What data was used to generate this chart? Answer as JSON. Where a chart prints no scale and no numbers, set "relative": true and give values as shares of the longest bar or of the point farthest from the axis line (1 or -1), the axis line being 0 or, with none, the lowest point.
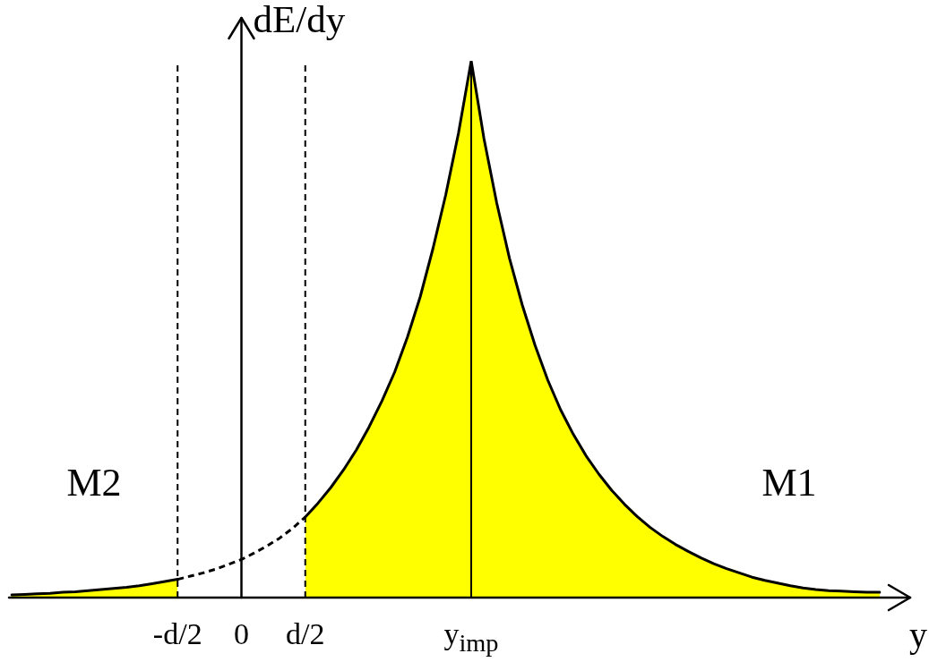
{
  "chart_data": {
    "type": "area",
    "relative": true,
    "xlabel": "y",
    "ylabel": "dE/dy",
    "categories": [
      null,
      null,
      null,
      null,
      null,
      null,
      null,
      null,
      null,
      null,
      null,
      null,
      null,
      "-d/2",
      null,
      null,
      null,
      null,
      "0",
      null,
      null,
      null,
      null,
      "d/2",
      null,
      null,
      null,
      null,
      null,
      null,
      null,
      null,
      null,
      null,
      null,
      null,
      "y$_{imp}$",
      null,
      null,
      null,
      null,
      null,
      null,
      null,
      null,
      null,
      null,
      null,
      null,
      null,
      null,
      null,
      null,
      null,
      null,
      null,
      null,
      null,
      null,
      null,
      null,
      null,
      null,
      null,
      null,
      null,
      null,
      null,
      null
    ],
    "series": [
      {
        "color": "#ffff00",
        "values": [
          0.005,
          0.006,
          0.007,
          0.008,
          0.01,
          0.011,
          0.013,
          0.015,
          0.017,
          0.019,
          0.022,
          0.026,
          0.03,
          0.034,
          null,
          null,
          null,
          null,
          null,
          null,
          null,
          null,
          null,
          0.15,
          0.176,
          0.205,
          0.238,
          0.275,
          0.318,
          0.366,
          0.42,
          0.485,
          0.56,
          0.65,
          0.75,
          0.865,
          1,
          0.855,
          0.735,
          0.632,
          0.545,
          0.47,
          0.405,
          0.35,
          0.304,
          0.264,
          0.23,
          0.2,
          0.174,
          0.151,
          0.131,
          0.114,
          0.099,
          0.086,
          0.074,
          0.063,
          0.054,
          0.046,
          0.038,
          0.032,
          0.027,
          0.022,
          0.018,
          0.015,
          0.013,
          0.012,
          0.011,
          0.01,
          0.01
        ]
      },
      {
        "type": "line",
        "color": "#000000",
        "line_style": "dashed",
        "values": [
          null,
          null,
          null,
          null,
          null,
          null,
          null,
          null,
          null,
          null,
          null,
          null,
          null,
          0.034,
          0.04,
          0.046,
          0.053,
          0.062,
          0.071,
          0.083,
          0.096,
          0.111,
          0.129,
          0.15,
          null,
          null,
          null,
          null,
          null,
          null,
          null,
          null,
          null,
          null,
          null,
          null,
          null,
          null,
          null,
          null,
          null,
          null,
          null,
          null,
          null,
          null,
          null,
          null,
          null,
          null,
          null,
          null,
          null,
          null,
          null,
          null,
          null,
          null,
          null,
          null,
          null,
          null,
          null,
          null,
          null,
          null,
          null,
          null,
          null
        ]
      }
    ],
    "ref_lines": [
      {
        "axis": "x",
        "value": "-d/2",
        "color": "#000000",
        "line_style": "dashed"
      },
      {
        "axis": "x",
        "value": "d/2",
        "color": "#000000",
        "line_style": "dashed"
      },
      {
        "axis": "x",
        "value": "y$_{imp}$",
        "color": "#000000",
        "line_style": "solid"
      }
    ],
    "annotations": [
      "M2",
      "M1"
    ]
  }
}
